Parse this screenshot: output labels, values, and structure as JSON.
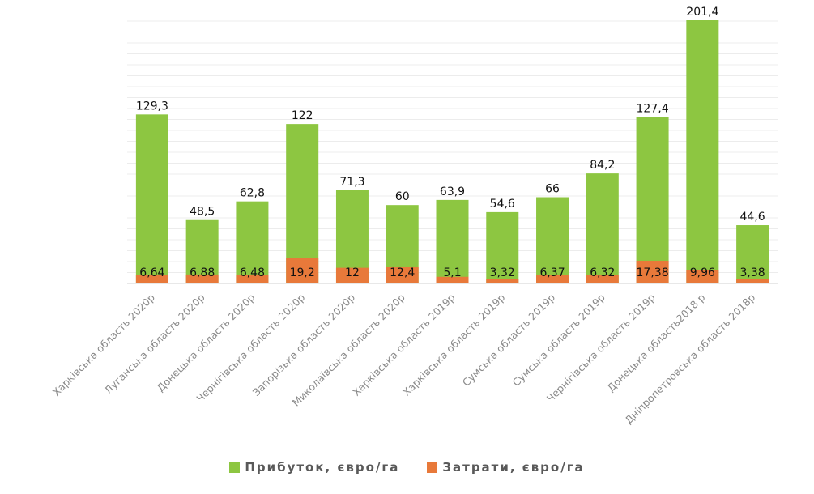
{
  "chart_data": {
    "type": "bar",
    "title": "",
    "xlabel": "",
    "ylabel": "",
    "ylim": [
      0,
      201.4
    ],
    "grid": true,
    "legend_position": "bottom",
    "overlap": true,
    "categories": [
      "Харківська область 2020р",
      "Луганська область 2020р",
      "Донецька область 2020р",
      "Чернігівська область 2020р",
      "Запорізька область 2020р",
      "Миколаївська область 2020р",
      "Харківська область 2019р",
      "Харківська область 2019р",
      "Сумська область 2019р",
      "Сумська область 2019р",
      "Чернігівська область 2019р",
      "Донецька область2018 р",
      "Дніпропетровська область 2018р"
    ],
    "series": [
      {
        "name": "Прибуток, євро/га",
        "color": "#8DC641",
        "values": [
          129.3,
          48.5,
          62.8,
          122,
          71.3,
          60,
          63.9,
          54.6,
          66,
          84.2,
          127.4,
          201.4,
          44.6
        ],
        "labels": [
          "129,3",
          "48,5",
          "62,8",
          "122",
          "71,3",
          "60",
          "63,9",
          "54,6",
          "66",
          "84,2",
          "127,4",
          "201,4",
          "44,6"
        ]
      },
      {
        "name": "Затрати, євро/га",
        "color": "#E8793A",
        "values": [
          6.64,
          6.88,
          6.48,
          19.2,
          12,
          12.4,
          5.1,
          3.32,
          6.37,
          6.32,
          17.38,
          9.96,
          3.38
        ],
        "labels": [
          "6,64",
          "6,88",
          "6,48",
          "19,2",
          "12",
          "12,4",
          "5,1",
          "3,32",
          "6,37",
          "6,32",
          "17,38",
          "9,96",
          "3,38"
        ]
      }
    ]
  },
  "legend": {
    "profit": "Прибуток, євро/га",
    "costs": "Затрати, євро/га"
  }
}
